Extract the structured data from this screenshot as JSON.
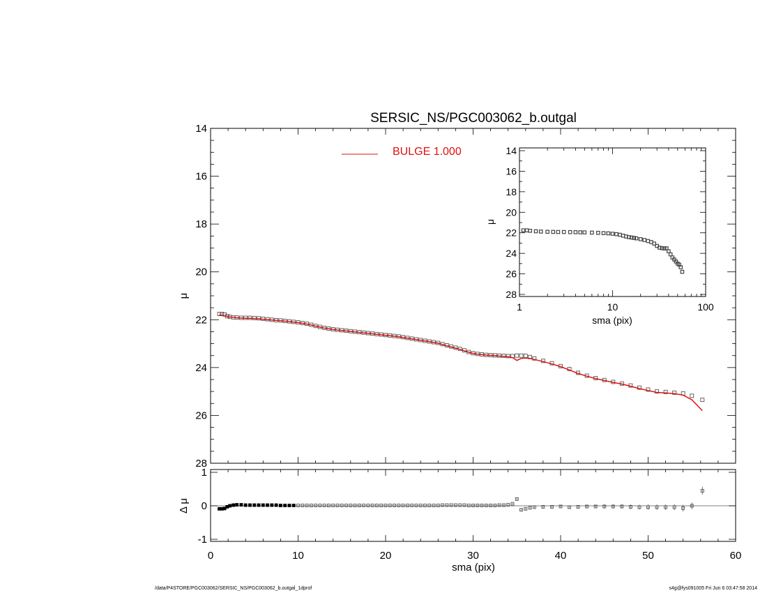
{
  "footer": {
    "left": "/data/P4STORE/PGC003062/SERSIC_NS/PGC003062_b.outgal_1dprof",
    "right": "s4g@fys091005  Fri Jun  6 03:47:58 2014"
  },
  "colors": {
    "axis": "#000000",
    "data": "#555555",
    "model": "#dd1111"
  },
  "chart_data": [
    {
      "type": "scatter",
      "title": "SERSIC_NS/PGC003062_b.outgal",
      "xlabel": "",
      "ylabel": "μ",
      "xlim": [
        0,
        60
      ],
      "ylim": [
        28,
        14
      ],
      "y_inverted": true,
      "xticks": [
        0,
        10,
        20,
        30,
        40,
        50,
        60
      ],
      "yticks": [
        14,
        16,
        18,
        20,
        22,
        24,
        26,
        28
      ],
      "legend": {
        "label": "BULGE  1.000",
        "color": "#dd1111",
        "position": "top-center"
      },
      "series": [
        {
          "style": "open-squares",
          "x": [
            1.0,
            1.3,
            1.6,
            1.9,
            2.2,
            2.6,
            3.0,
            3.5,
            4.0,
            4.5,
            5.0,
            5.5,
            6.0,
            6.5,
            7.0,
            7.5,
            8.0,
            8.5,
            9.0,
            9.5,
            10.0,
            10.5,
            11.0,
            11.5,
            12.0,
            12.5,
            13.0,
            13.5,
            14.0,
            14.5,
            15.0,
            15.5,
            16.0,
            16.5,
            17.0,
            17.5,
            18.0,
            18.5,
            19.0,
            19.5,
            20.0,
            20.5,
            21.0,
            21.5,
            22.0,
            22.5,
            23.0,
            23.5,
            24.0,
            24.5,
            25.0,
            25.5,
            26.0,
            26.5,
            27.0,
            27.5,
            28.0,
            28.5,
            29.0,
            29.5,
            30.0,
            30.5,
            31.0,
            31.5,
            32.0,
            32.5,
            33.0,
            33.5,
            34.0,
            34.5,
            35.0,
            35.5,
            36.0,
            36.5,
            37.0,
            38.0,
            39.0,
            40.0,
            41.0,
            42.0,
            43.0,
            44.0,
            45.0,
            46.0,
            47.0,
            48.0,
            49.0,
            50.0,
            51.0,
            52.0,
            53.0,
            54.0,
            55.0,
            56.2
          ],
          "y": [
            21.76,
            21.76,
            21.78,
            21.85,
            21.88,
            21.9,
            21.91,
            21.92,
            21.92,
            21.92,
            21.93,
            21.94,
            21.96,
            21.98,
            22.0,
            22.02,
            22.03,
            22.05,
            22.07,
            22.09,
            22.11,
            22.14,
            22.17,
            22.21,
            22.26,
            22.3,
            22.34,
            22.37,
            22.4,
            22.42,
            22.44,
            22.46,
            22.48,
            22.5,
            22.52,
            22.54,
            22.56,
            22.58,
            22.6,
            22.62,
            22.64,
            22.66,
            22.68,
            22.7,
            22.73,
            22.76,
            22.79,
            22.82,
            22.85,
            22.88,
            22.91,
            22.94,
            22.97,
            23.02,
            23.07,
            23.12,
            23.17,
            23.22,
            23.28,
            23.35,
            23.4,
            23.43,
            23.45,
            23.47,
            23.48,
            23.49,
            23.5,
            23.51,
            23.52,
            23.52,
            23.5,
            23.5,
            23.51,
            23.56,
            23.62,
            23.72,
            23.82,
            23.94,
            24.06,
            24.22,
            24.34,
            24.44,
            24.52,
            24.6,
            24.67,
            24.75,
            24.84,
            24.92,
            25.0,
            25.02,
            25.05,
            25.08,
            25.18,
            25.35
          ]
        },
        {
          "style": "red-line",
          "x": [
            1.0,
            1.3,
            1.6,
            1.9,
            2.2,
            2.6,
            3.0,
            3.5,
            4.0,
            4.5,
            5.0,
            5.5,
            6.0,
            6.5,
            7.0,
            7.5,
            8.0,
            8.5,
            9.0,
            9.5,
            10.0,
            10.5,
            11.0,
            11.5,
            12.0,
            12.5,
            13.0,
            13.5,
            14.0,
            14.5,
            15.0,
            15.5,
            16.0,
            16.5,
            17.0,
            17.5,
            18.0,
            18.5,
            19.0,
            19.5,
            20.0,
            20.5,
            21.0,
            21.5,
            22.0,
            22.5,
            23.0,
            23.5,
            24.0,
            24.5,
            25.0,
            25.5,
            26.0,
            26.5,
            27.0,
            27.5,
            28.0,
            28.5,
            29.0,
            29.5,
            30.0,
            30.5,
            31.0,
            31.5,
            32.0,
            32.5,
            33.0,
            33.5,
            34.0,
            34.5,
            35.0,
            35.5,
            36.0,
            36.5,
            37.0,
            38.0,
            39.0,
            40.0,
            41.0,
            42.0,
            43.0,
            44.0,
            45.0,
            46.0,
            47.0,
            48.0,
            49.0,
            50.0,
            51.0,
            52.0,
            53.0,
            54.0,
            55.0,
            56.2
          ],
          "y": [
            21.8,
            21.82,
            21.84,
            21.86,
            21.88,
            21.9,
            21.92,
            21.93,
            21.94,
            21.94,
            21.95,
            21.96,
            21.98,
            22.0,
            22.01,
            22.03,
            22.04,
            22.06,
            22.08,
            22.1,
            22.12,
            22.15,
            22.18,
            22.22,
            22.27,
            22.31,
            22.35,
            22.38,
            22.41,
            22.43,
            22.45,
            22.47,
            22.49,
            22.51,
            22.53,
            22.55,
            22.57,
            22.59,
            22.61,
            22.63,
            22.65,
            22.67,
            22.69,
            22.71,
            22.74,
            22.77,
            22.8,
            22.83,
            22.86,
            22.89,
            22.92,
            22.95,
            22.98,
            23.04,
            23.09,
            23.14,
            23.19,
            23.24,
            23.3,
            23.36,
            23.41,
            23.44,
            23.46,
            23.48,
            23.49,
            23.5,
            23.52,
            23.53,
            23.55,
            23.58,
            23.7,
            23.62,
            23.6,
            23.62,
            23.66,
            23.75,
            23.85,
            23.96,
            24.1,
            24.25,
            24.36,
            24.46,
            24.54,
            24.62,
            24.69,
            24.78,
            24.88,
            24.96,
            25.04,
            25.06,
            25.09,
            25.15,
            25.35,
            25.8
          ]
        }
      ]
    },
    {
      "type": "scatter",
      "title": "",
      "xlabel": "sma (pix)",
      "ylabel": "Δ μ",
      "xlim": [
        0,
        60
      ],
      "ylim": [
        -1,
        1
      ],
      "xticks": [
        0,
        10,
        20,
        30,
        40,
        50,
        60
      ],
      "yticks": [
        -1,
        0,
        1
      ],
      "series": [
        {
          "style": "squares-with-errorbars",
          "x": [
            1.0,
            1.3,
            1.6,
            1.9,
            2.2,
            2.6,
            3.0,
            3.5,
            4.0,
            4.5,
            5.0,
            5.5,
            6.0,
            6.5,
            7.0,
            7.5,
            8.0,
            8.5,
            9.0,
            9.5,
            10.0,
            10.5,
            11.0,
            11.5,
            12.0,
            12.5,
            13.0,
            13.5,
            14.0,
            14.5,
            15.0,
            15.5,
            16.0,
            16.5,
            17.0,
            17.5,
            18.0,
            18.5,
            19.0,
            19.5,
            20.0,
            20.5,
            21.0,
            21.5,
            22.0,
            22.5,
            23.0,
            23.5,
            24.0,
            24.5,
            25.0,
            25.5,
            26.0,
            26.5,
            27.0,
            27.5,
            28.0,
            28.5,
            29.0,
            29.5,
            30.0,
            30.5,
            31.0,
            31.5,
            32.0,
            32.5,
            33.0,
            33.5,
            34.0,
            34.5,
            35.0,
            35.5,
            36.0,
            36.5,
            37.0,
            38.0,
            39.0,
            40.0,
            41.0,
            42.0,
            43.0,
            44.0,
            45.0,
            46.0,
            47.0,
            48.0,
            49.0,
            50.0,
            51.0,
            52.0,
            53.0,
            54.0,
            55.0,
            56.2
          ],
          "y": [
            -0.09,
            -0.09,
            -0.08,
            -0.03,
            0.0,
            0.02,
            0.03,
            0.03,
            0.02,
            0.02,
            0.02,
            0.02,
            0.02,
            0.02,
            0.02,
            0.02,
            0.01,
            0.01,
            0.01,
            0.01,
            0.01,
            0.01,
            0.01,
            0.01,
            0.01,
            0.01,
            0.01,
            0.01,
            0.01,
            0.01,
            0.01,
            0.01,
            0.01,
            0.01,
            0.01,
            0.01,
            0.01,
            0.01,
            0.01,
            0.01,
            0.01,
            0.01,
            0.01,
            0.01,
            0.01,
            0.01,
            0.01,
            0.01,
            0.01,
            0.01,
            0.01,
            0.01,
            0.01,
            0.02,
            0.02,
            0.02,
            0.02,
            0.02,
            0.02,
            0.01,
            0.01,
            0.01,
            0.01,
            0.01,
            0.01,
            0.01,
            0.02,
            0.02,
            0.03,
            0.06,
            0.2,
            -0.12,
            -0.09,
            -0.06,
            -0.04,
            -0.03,
            -0.03,
            -0.02,
            -0.04,
            -0.03,
            -0.02,
            -0.02,
            -0.02,
            -0.02,
            -0.02,
            -0.03,
            -0.04,
            -0.04,
            -0.04,
            -0.04,
            -0.04,
            -0.07,
            0.0,
            0.45
          ],
          "err": [
            0.01,
            0.01,
            0.01,
            0.01,
            0.01,
            0.01,
            0.01,
            0.01,
            0.01,
            0.01,
            0.01,
            0.01,
            0.01,
            0.01,
            0.01,
            0.01,
            0.01,
            0.01,
            0.01,
            0.01,
            0.01,
            0.01,
            0.01,
            0.01,
            0.01,
            0.01,
            0.01,
            0.01,
            0.01,
            0.01,
            0.01,
            0.01,
            0.01,
            0.01,
            0.01,
            0.01,
            0.01,
            0.01,
            0.01,
            0.01,
            0.01,
            0.01,
            0.01,
            0.01,
            0.01,
            0.01,
            0.01,
            0.01,
            0.01,
            0.01,
            0.01,
            0.01,
            0.01,
            0.01,
            0.01,
            0.01,
            0.01,
            0.01,
            0.01,
            0.01,
            0.02,
            0.02,
            0.02,
            0.02,
            0.02,
            0.02,
            0.02,
            0.02,
            0.02,
            0.02,
            0.03,
            0.03,
            0.03,
            0.03,
            0.03,
            0.04,
            0.04,
            0.04,
            0.05,
            0.05,
            0.05,
            0.05,
            0.06,
            0.06,
            0.06,
            0.07,
            0.07,
            0.08,
            0.08,
            0.08,
            0.09,
            0.1,
            0.1,
            0.12
          ]
        }
      ]
    },
    {
      "type": "scatter",
      "title": "",
      "xlabel": "sma (pix)",
      "ylabel": "μ",
      "x_scale": "log",
      "xlim": [
        1,
        100
      ],
      "ylim": [
        28,
        14
      ],
      "y_inverted": true,
      "xticks": [
        1,
        10,
        100
      ],
      "yticks": [
        14,
        16,
        18,
        20,
        22,
        24,
        26,
        28
      ],
      "series": [
        {
          "style": "open-squares",
          "x": [
            1.1,
            1.2,
            1.3,
            1.5,
            1.7,
            2.0,
            2.3,
            2.6,
            3.0,
            3.5,
            4.0,
            4.5,
            5.0,
            6.0,
            7.0,
            8.0,
            9.0,
            10.0,
            11.0,
            12.0,
            13.0,
            14.0,
            15.0,
            16.0,
            17.0,
            18.0,
            20.0,
            22.0,
            24.0,
            26.0,
            28.0,
            30.0,
            32.0,
            34.0,
            36.0,
            38.0,
            40.0,
            42.0,
            44.0,
            46.0,
            48.0,
            50.0,
            52.0,
            54.0,
            56.0
          ],
          "y": [
            21.76,
            21.76,
            21.8,
            21.85,
            21.88,
            21.9,
            21.91,
            21.92,
            21.92,
            21.93,
            21.94,
            21.95,
            21.96,
            21.98,
            22.0,
            22.03,
            22.05,
            22.09,
            22.13,
            22.19,
            22.28,
            22.36,
            22.42,
            22.46,
            22.5,
            22.54,
            22.62,
            22.7,
            22.8,
            22.9,
            23.05,
            23.28,
            23.45,
            23.5,
            23.52,
            23.51,
            23.8,
            24.1,
            24.4,
            24.6,
            24.8,
            25.0,
            25.1,
            25.35,
            25.8
          ]
        }
      ]
    }
  ]
}
